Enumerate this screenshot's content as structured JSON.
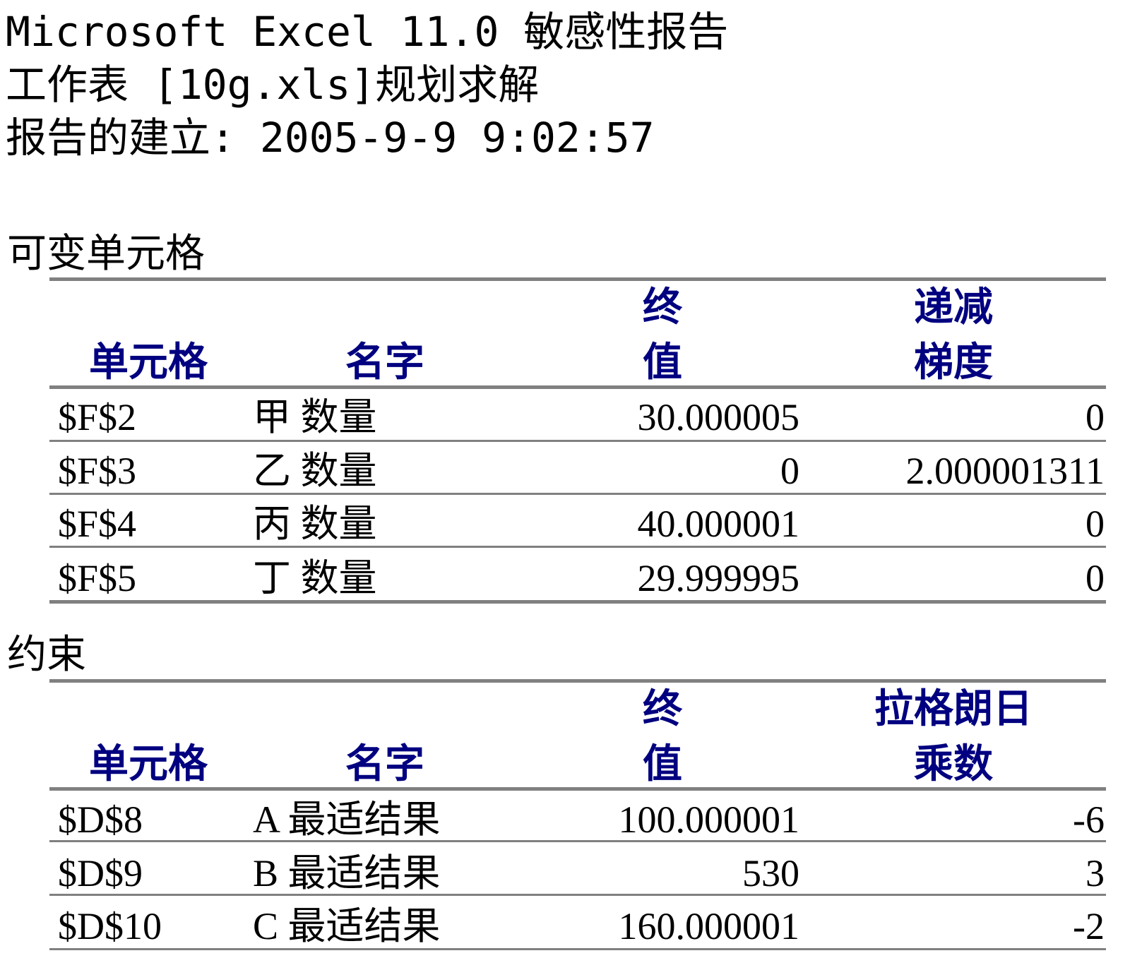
{
  "header": {
    "title": "Microsoft Excel 11.0 敏感性报告",
    "worksheet": "工作表 [10g.xls]规划求解",
    "created": "报告的建立: 2005-9-9 9:02:57"
  },
  "variable_cells": {
    "section_title": "可变单元格",
    "columns": {
      "cell": "单元格",
      "name": "名字",
      "final_value_1": "终",
      "final_value_2": "值",
      "reduced_gradient_1": "递减",
      "reduced_gradient_2": "梯度"
    },
    "rows": [
      {
        "cell": "$F$2",
        "name": "甲 数量",
        "final_value": "30.000005",
        "reduced_gradient": "0"
      },
      {
        "cell": "$F$3",
        "name": "乙 数量",
        "final_value": "0",
        "reduced_gradient": "2.000001311"
      },
      {
        "cell": "$F$4",
        "name": "丙 数量",
        "final_value": "40.000001",
        "reduced_gradient": "0"
      },
      {
        "cell": "$F$5",
        "name": "丁 数量",
        "final_value": "29.999995",
        "reduced_gradient": "0"
      }
    ]
  },
  "constraints": {
    "section_title": "约束",
    "columns": {
      "cell": "单元格",
      "name": "名字",
      "final_value_1": "终",
      "final_value_2": "值",
      "lagrange_1": "拉格朗日",
      "lagrange_2": "乘数"
    },
    "rows": [
      {
        "cell": "$D$8",
        "name": "A 最适结果",
        "final_value": "100.000001",
        "lagrange": "-6"
      },
      {
        "cell": "$D$9",
        "name": "B 最适结果",
        "final_value": "530",
        "lagrange": "3"
      },
      {
        "cell": "$D$10",
        "name": "C 最适结果",
        "final_value": "160.000001",
        "lagrange": "-2"
      }
    ]
  }
}
